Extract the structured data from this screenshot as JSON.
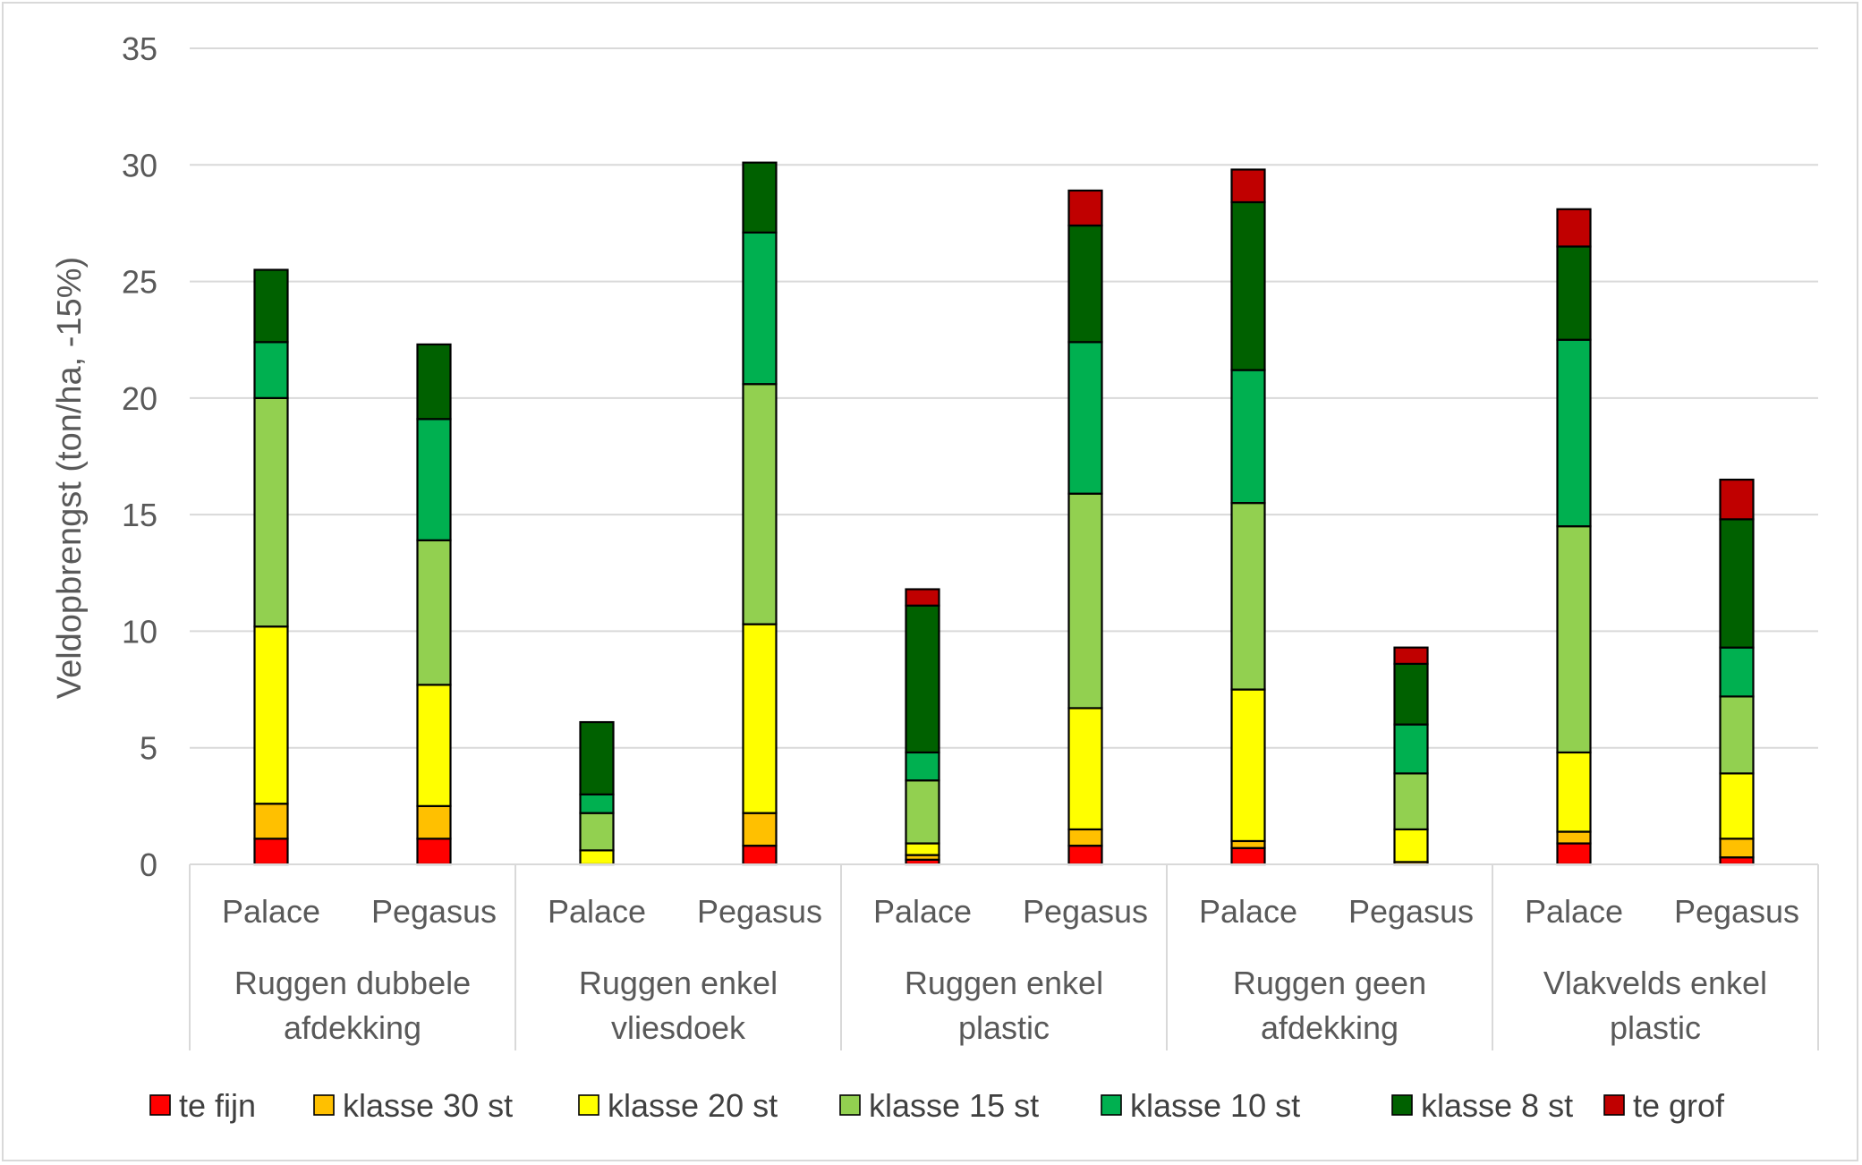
{
  "chart_data": {
    "type": "bar",
    "stacked": true,
    "ylabel": "Veldopbrengst (ton/ha, -15%)",
    "ylim": [
      0,
      35
    ],
    "yticks": [
      0,
      5,
      10,
      15,
      20,
      25,
      30,
      35
    ],
    "grid": true,
    "legend_position": "bottom",
    "groups": [
      {
        "line1": "Ruggen dubbele",
        "line2": "afdekking"
      },
      {
        "line1": "Ruggen enkel",
        "line2": "vliesdoek"
      },
      {
        "line1": "Ruggen enkel",
        "line2": "plastic"
      },
      {
        "line1": "Ruggen geen",
        "line2": "afdekking"
      },
      {
        "line1": "Vlakvelds enkel",
        "line2": "plastic"
      }
    ],
    "categories": [
      "Palace",
      "Pegasus",
      "Palace",
      "Pegasus",
      "Palace",
      "Pegasus",
      "Palace",
      "Pegasus",
      "Palace",
      "Pegasus"
    ],
    "series": [
      {
        "name": "te fijn",
        "color": "#ff0000",
        "values": [
          1.1,
          1.1,
          0.0,
          0.8,
          0.2,
          0.8,
          0.7,
          0.0,
          0.9,
          0.3
        ]
      },
      {
        "name": "klasse 30 st",
        "color": "#ffc000",
        "values": [
          1.5,
          1.4,
          0.0,
          1.4,
          0.2,
          0.7,
          0.3,
          0.1,
          0.5,
          0.8
        ]
      },
      {
        "name": "klasse 20 st",
        "color": "#ffff00",
        "values": [
          7.6,
          5.2,
          0.6,
          8.1,
          0.5,
          5.2,
          6.5,
          1.4,
          3.4,
          2.8
        ]
      },
      {
        "name": "klasse 15 st",
        "color": "#92d050",
        "values": [
          9.8,
          6.2,
          1.6,
          10.3,
          2.7,
          9.2,
          8.0,
          2.4,
          9.7,
          3.3
        ]
      },
      {
        "name": "klasse 10 st",
        "color": "#00b050",
        "values": [
          2.4,
          5.2,
          0.8,
          6.5,
          1.2,
          6.5,
          5.7,
          2.1,
          8.0,
          2.1
        ]
      },
      {
        "name": "klasse 8 st",
        "color": "#006100",
        "values": [
          3.1,
          3.2,
          3.1,
          3.0,
          6.3,
          5.0,
          7.2,
          2.6,
          4.0,
          5.5
        ]
      },
      {
        "name": "te grof",
        "color": "#c00000",
        "values": [
          0.0,
          0.0,
          0.0,
          0.0,
          0.7,
          1.5,
          1.4,
          0.7,
          1.6,
          1.7
        ]
      }
    ]
  }
}
